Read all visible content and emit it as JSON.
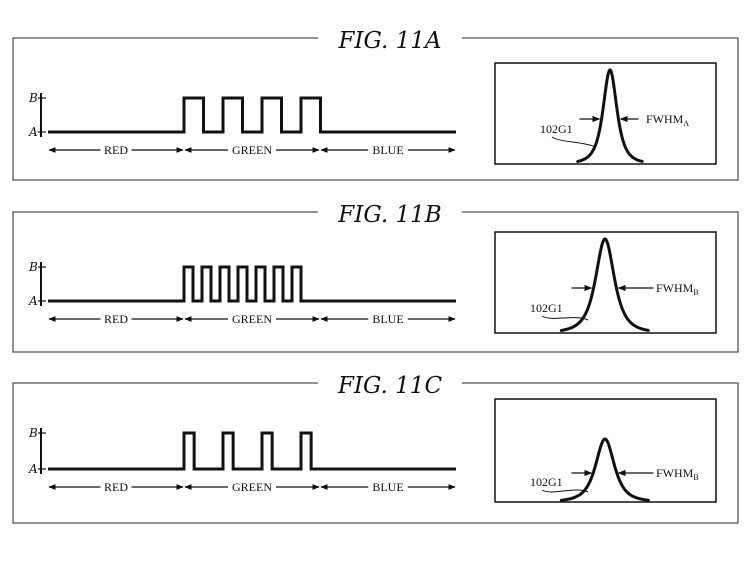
{
  "figures": [
    {
      "title": "FIG. 11A",
      "levels": {
        "high": "B",
        "low": "A"
      },
      "segments": [
        "RED",
        "GREEN",
        "BLUE"
      ],
      "green_pulse_count": 4,
      "pulse_duty": 0.5,
      "spectrum": {
        "curve_label": "102G1",
        "width_label": "FWHM",
        "width_subscript": "A"
      }
    },
    {
      "title": "FIG. 11B",
      "levels": {
        "high": "B",
        "low": "A"
      },
      "segments": [
        "RED",
        "GREEN",
        "BLUE"
      ],
      "green_pulse_count": 7,
      "pulse_duty": 0.5,
      "spectrum": {
        "curve_label": "102G1",
        "width_label": "FWHM",
        "width_subscript": "B"
      }
    },
    {
      "title": "FIG. 11C",
      "levels": {
        "high": "B",
        "low": "A"
      },
      "segments": [
        "RED",
        "GREEN",
        "BLUE"
      ],
      "green_pulse_count": 4,
      "pulse_duty": 0.25,
      "spectrum": {
        "curve_label": "102G1",
        "width_label": "FWHM",
        "width_subscript": "B"
      }
    }
  ],
  "colors": {
    "ink": "#111111",
    "frame": "#555555",
    "background": "#ffffff"
  }
}
